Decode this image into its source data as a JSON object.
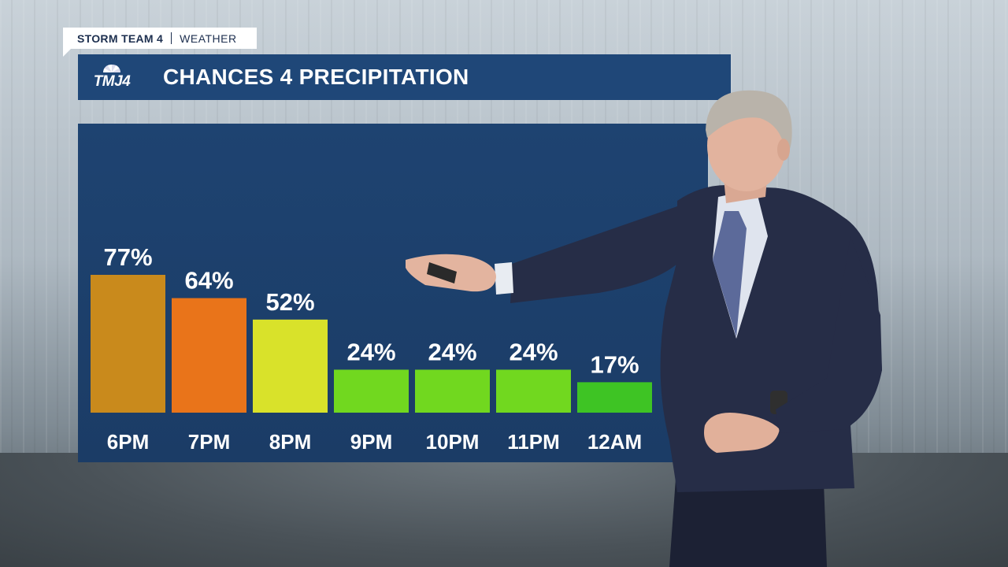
{
  "branding": {
    "team": "STORM TEAM 4",
    "section": "WEATHER",
    "logo_text": "TMJ4"
  },
  "title": "CHANCES 4 PRECIPITATION",
  "chart_data": {
    "type": "bar",
    "title": "CHANCES 4 PRECIPITATION",
    "categories": [
      "6PM",
      "7PM",
      "8PM",
      "9PM",
      "10PM",
      "11PM",
      "12AM"
    ],
    "values": [
      77,
      64,
      52,
      24,
      24,
      24,
      17
    ],
    "labels": [
      "77%",
      "64%",
      "52%",
      "24%",
      "24%",
      "24%",
      "17%"
    ],
    "colors": [
      "#c98a1c",
      "#e9741a",
      "#d9e22a",
      "#71d81f",
      "#71d81f",
      "#71d81f",
      "#3ec424"
    ],
    "unit": "%",
    "ylim": [
      0,
      100
    ],
    "grid": false
  },
  "colors": {
    "panel": "#1e4371",
    "title_bar": "#1f4778",
    "text": "#ffffff"
  }
}
